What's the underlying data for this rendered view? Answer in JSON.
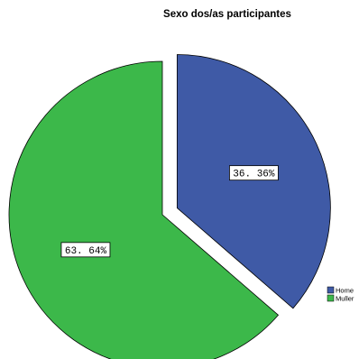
{
  "chart_data": {
    "type": "pie",
    "title": "Sexo dos/as participantes",
    "slices": [
      {
        "label": "Home",
        "value": 36.36,
        "display": "36. 36%",
        "color": "#3f5aa6",
        "exploded": true
      },
      {
        "label": "Muller",
        "value": 63.64,
        "display": "63. 64%",
        "color": "#3cb84a",
        "exploded": false
      }
    ],
    "legend": {
      "position": "right",
      "entries": [
        "Home",
        "Muller"
      ]
    },
    "start_angle": "12 o'clock",
    "direction": "clockwise"
  }
}
